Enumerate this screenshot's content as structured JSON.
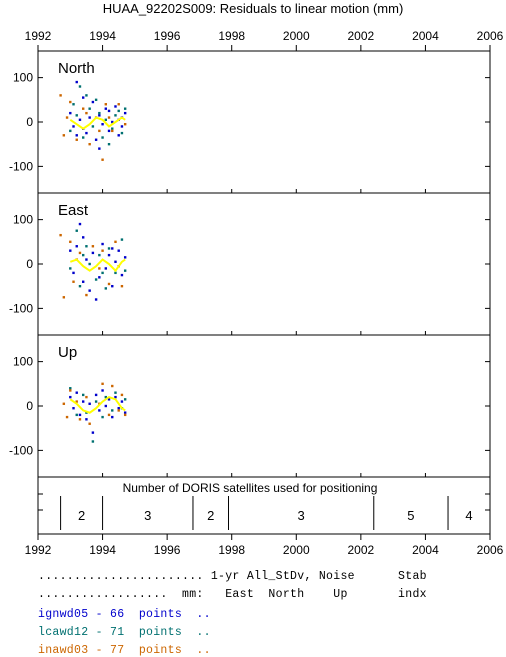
{
  "title": "HUAA_92202S009: Residuals to linear motion (mm)",
  "colors": {
    "series_a": "#0000cc",
    "series_b": "#007070",
    "series_c": "#cc6600",
    "smooth": "#ffff00",
    "axis": "#000000"
  },
  "chart_data": {
    "type": "scatter",
    "title": "HUAA_92202S009: Residuals to linear motion (mm)",
    "x_range": [
      1992,
      2006
    ],
    "x_ticks": [
      "1992",
      "1994",
      "1996",
      "1998",
      "2000",
      "2002",
      "2004",
      "2006"
    ],
    "panels": [
      {
        "label": "North",
        "y_range": [
          -160,
          160
        ],
        "y_ticks": [
          "100",
          "0",
          "-100"
        ],
        "series": [
          {
            "name": "ignwd05",
            "color": "#0000cc",
            "points": [
              [
                1993.2,
                90
              ],
              [
                1993.4,
                55
              ],
              [
                1993.0,
                20
              ],
              [
                1993.1,
                -10
              ],
              [
                1993.3,
                5
              ],
              [
                1993.5,
                -25
              ],
              [
                1993.6,
                10
              ],
              [
                1993.8,
                -40
              ],
              [
                1993.9,
                15
              ],
              [
                1994.0,
                -5
              ],
              [
                1994.1,
                30
              ],
              [
                1994.2,
                -20
              ],
              [
                1994.3,
                0
              ],
              [
                1994.4,
                35
              ],
              [
                1994.5,
                -30
              ],
              [
                1994.6,
                10
              ],
              [
                1994.7,
                20
              ],
              [
                1993.2,
                -30
              ],
              [
                1993.7,
                45
              ],
              [
                1993.9,
                -60
              ],
              [
                1994.2,
                25
              ],
              [
                1994.5,
                5
              ],
              [
                1993.4,
                -15
              ],
              [
                1994.6,
                -10
              ]
            ]
          },
          {
            "name": "lcawd12",
            "color": "#007070",
            "points": [
              [
                1993.3,
                80
              ],
              [
                1993.5,
                60
              ],
              [
                1993.0,
                -20
              ],
              [
                1993.2,
                15
              ],
              [
                1993.4,
                -35
              ],
              [
                1993.6,
                30
              ],
              [
                1993.7,
                -10
              ],
              [
                1993.9,
                20
              ],
              [
                1994.0,
                -35
              ],
              [
                1994.1,
                5
              ],
              [
                1994.3,
                -15
              ],
              [
                1994.4,
                15
              ],
              [
                1994.6,
                -25
              ],
              [
                1994.7,
                30
              ],
              [
                1993.8,
                50
              ],
              [
                1994.2,
                -50
              ],
              [
                1993.1,
                40
              ],
              [
                1994.5,
                25
              ]
            ]
          },
          {
            "name": "inawd03",
            "color": "#cc6600",
            "points": [
              [
                1992.7,
                60
              ],
              [
                1992.8,
                -30
              ],
              [
                1993.0,
                45
              ],
              [
                1993.2,
                -40
              ],
              [
                1993.4,
                30
              ],
              [
                1993.6,
                -50
              ],
              [
                1993.8,
                10
              ],
              [
                1994.0,
                -85
              ],
              [
                1994.1,
                40
              ],
              [
                1994.3,
                -20
              ],
              [
                1994.5,
                40
              ],
              [
                1994.7,
                -5
              ],
              [
                1993.5,
                20
              ],
              [
                1993.9,
                -20
              ],
              [
                1994.2,
                10
              ],
              [
                1992.9,
                10
              ]
            ]
          }
        ],
        "smooth": [
          [
            1993.0,
            5
          ],
          [
            1993.2,
            -5
          ],
          [
            1993.4,
            -15
          ],
          [
            1993.6,
            -5
          ],
          [
            1993.8,
            10
          ],
          [
            1994.0,
            5
          ],
          [
            1994.2,
            -10
          ],
          [
            1994.4,
            0
          ],
          [
            1994.6,
            10
          ],
          [
            1994.7,
            5
          ]
        ]
      },
      {
        "label": "East",
        "y_range": [
          -160,
          160
        ],
        "y_ticks": [
          "100",
          "0",
          "-100"
        ],
        "series": [
          {
            "name": "ignwd05",
            "color": "#0000cc",
            "points": [
              [
                1993.3,
                90
              ],
              [
                1993.0,
                30
              ],
              [
                1993.1,
                -20
              ],
              [
                1993.2,
                40
              ],
              [
                1993.4,
                -40
              ],
              [
                1993.5,
                10
              ],
              [
                1993.6,
                -60
              ],
              [
                1993.7,
                25
              ],
              [
                1993.9,
                -30
              ],
              [
                1994.0,
                45
              ],
              [
                1994.1,
                -10
              ],
              [
                1994.2,
                20
              ],
              [
                1994.3,
                -50
              ],
              [
                1994.4,
                5
              ],
              [
                1994.5,
                30
              ],
              [
                1994.6,
                -25
              ],
              [
                1994.7,
                15
              ],
              [
                1993.8,
                -80
              ],
              [
                1993.4,
                60
              ],
              [
                1994.3,
                35
              ]
            ]
          },
          {
            "name": "lcawd12",
            "color": "#007070",
            "points": [
              [
                1993.2,
                75
              ],
              [
                1993.0,
                -10
              ],
              [
                1993.3,
                -50
              ],
              [
                1993.5,
                40
              ],
              [
                1993.6,
                0
              ],
              [
                1993.8,
                -35
              ],
              [
                1993.9,
                20
              ],
              [
                1994.1,
                -55
              ],
              [
                1994.2,
                35
              ],
              [
                1994.4,
                -20
              ],
              [
                1994.6,
                55
              ],
              [
                1994.7,
                -15
              ],
              [
                1993.4,
                20
              ],
              [
                1994.0,
                -20
              ]
            ]
          },
          {
            "name": "inawd03",
            "color": "#cc6600",
            "points": [
              [
                1992.7,
                65
              ],
              [
                1992.8,
                -75
              ],
              [
                1993.0,
                50
              ],
              [
                1993.1,
                -40
              ],
              [
                1993.3,
                25
              ],
              [
                1993.5,
                -70
              ],
              [
                1993.7,
                40
              ],
              [
                1993.9,
                -10
              ],
              [
                1994.0,
                30
              ],
              [
                1994.2,
                -45
              ],
              [
                1994.4,
                50
              ],
              [
                1994.6,
                -50
              ],
              [
                1993.2,
                10
              ],
              [
                1994.5,
                -5
              ]
            ]
          }
        ],
        "smooth": [
          [
            1993.0,
            5
          ],
          [
            1993.2,
            10
          ],
          [
            1993.4,
            -5
          ],
          [
            1993.6,
            -15
          ],
          [
            1993.8,
            -5
          ],
          [
            1994.0,
            10
          ],
          [
            1994.2,
            0
          ],
          [
            1994.4,
            -15
          ],
          [
            1994.6,
            5
          ],
          [
            1994.7,
            10
          ]
        ]
      },
      {
        "label": "Up",
        "y_range": [
          -160,
          160
        ],
        "y_ticks": [
          "100",
          "0",
          "-100"
        ],
        "series": [
          {
            "name": "ignwd05",
            "color": "#0000cc",
            "points": [
              [
                1993.0,
                20
              ],
              [
                1993.1,
                -5
              ],
              [
                1993.2,
                30
              ],
              [
                1993.3,
                -20
              ],
              [
                1993.4,
                10
              ],
              [
                1993.5,
                -30
              ],
              [
                1993.6,
                5
              ],
              [
                1993.7,
                -60
              ],
              [
                1993.8,
                25
              ],
              [
                1993.9,
                -10
              ],
              [
                1994.0,
                35
              ],
              [
                1994.1,
                0
              ],
              [
                1994.2,
                15
              ],
              [
                1994.3,
                -25
              ],
              [
                1994.4,
                20
              ],
              [
                1994.5,
                -5
              ],
              [
                1994.6,
                10
              ],
              [
                1994.7,
                -15
              ]
            ]
          },
          {
            "name": "lcawd12",
            "color": "#007070",
            "points": [
              [
                1993.0,
                40
              ],
              [
                1993.2,
                -20
              ],
              [
                1993.4,
                25
              ],
              [
                1993.5,
                -15
              ],
              [
                1993.7,
                -80
              ],
              [
                1993.8,
                10
              ],
              [
                1994.0,
                -25
              ],
              [
                1994.1,
                20
              ],
              [
                1994.3,
                -10
              ],
              [
                1994.4,
                30
              ],
              [
                1994.6,
                -5
              ],
              [
                1994.7,
                15
              ]
            ]
          },
          {
            "name": "inawd03",
            "color": "#cc6600",
            "points": [
              [
                1992.8,
                5
              ],
              [
                1992.9,
                -25
              ],
              [
                1993.0,
                35
              ],
              [
                1993.2,
                10
              ],
              [
                1993.3,
                -30
              ],
              [
                1993.5,
                20
              ],
              [
                1993.6,
                -40
              ],
              [
                1993.9,
                5
              ],
              [
                1994.0,
                50
              ],
              [
                1994.2,
                -20
              ],
              [
                1994.3,
                45
              ],
              [
                1994.5,
                -10
              ],
              [
                1994.6,
                25
              ],
              [
                1994.7,
                -20
              ]
            ]
          }
        ],
        "smooth": [
          [
            1993.0,
            15
          ],
          [
            1993.2,
            5
          ],
          [
            1993.4,
            -10
          ],
          [
            1993.6,
            -15
          ],
          [
            1993.8,
            -5
          ],
          [
            1994.0,
            10
          ],
          [
            1994.2,
            20
          ],
          [
            1994.4,
            15
          ],
          [
            1994.6,
            -5
          ],
          [
            1994.7,
            -10
          ]
        ]
      }
    ],
    "satellites_panel": {
      "title": "Number of DORIS satellites used for positioning",
      "dividers": [
        1992.7,
        1994.0,
        1996.8,
        1997.9,
        2002.4,
        2004.7
      ],
      "segments": [
        {
          "x": 1993.35,
          "label": "2"
        },
        {
          "x": 1995.4,
          "label": "3"
        },
        {
          "x": 1997.35,
          "label": "2"
        },
        {
          "x": 2000.15,
          "label": "3"
        },
        {
          "x": 2003.55,
          "label": "5"
        },
        {
          "x": 2005.35,
          "label": "4"
        }
      ]
    }
  },
  "footer": {
    "header1": "....................... 1-yr All_StDv, Noise      Stab",
    "header2": "..................  mm:   East  North    Up       indx",
    "rows": [
      {
        "text": "ignwd05 - 66  points  ..",
        "color": "#0000cc"
      },
      {
        "text": "lcawd12 - 71  points  ..",
        "color": "#007070"
      },
      {
        "text": "inawd03 - 77  points  ..",
        "color": "#cc6600"
      }
    ]
  }
}
